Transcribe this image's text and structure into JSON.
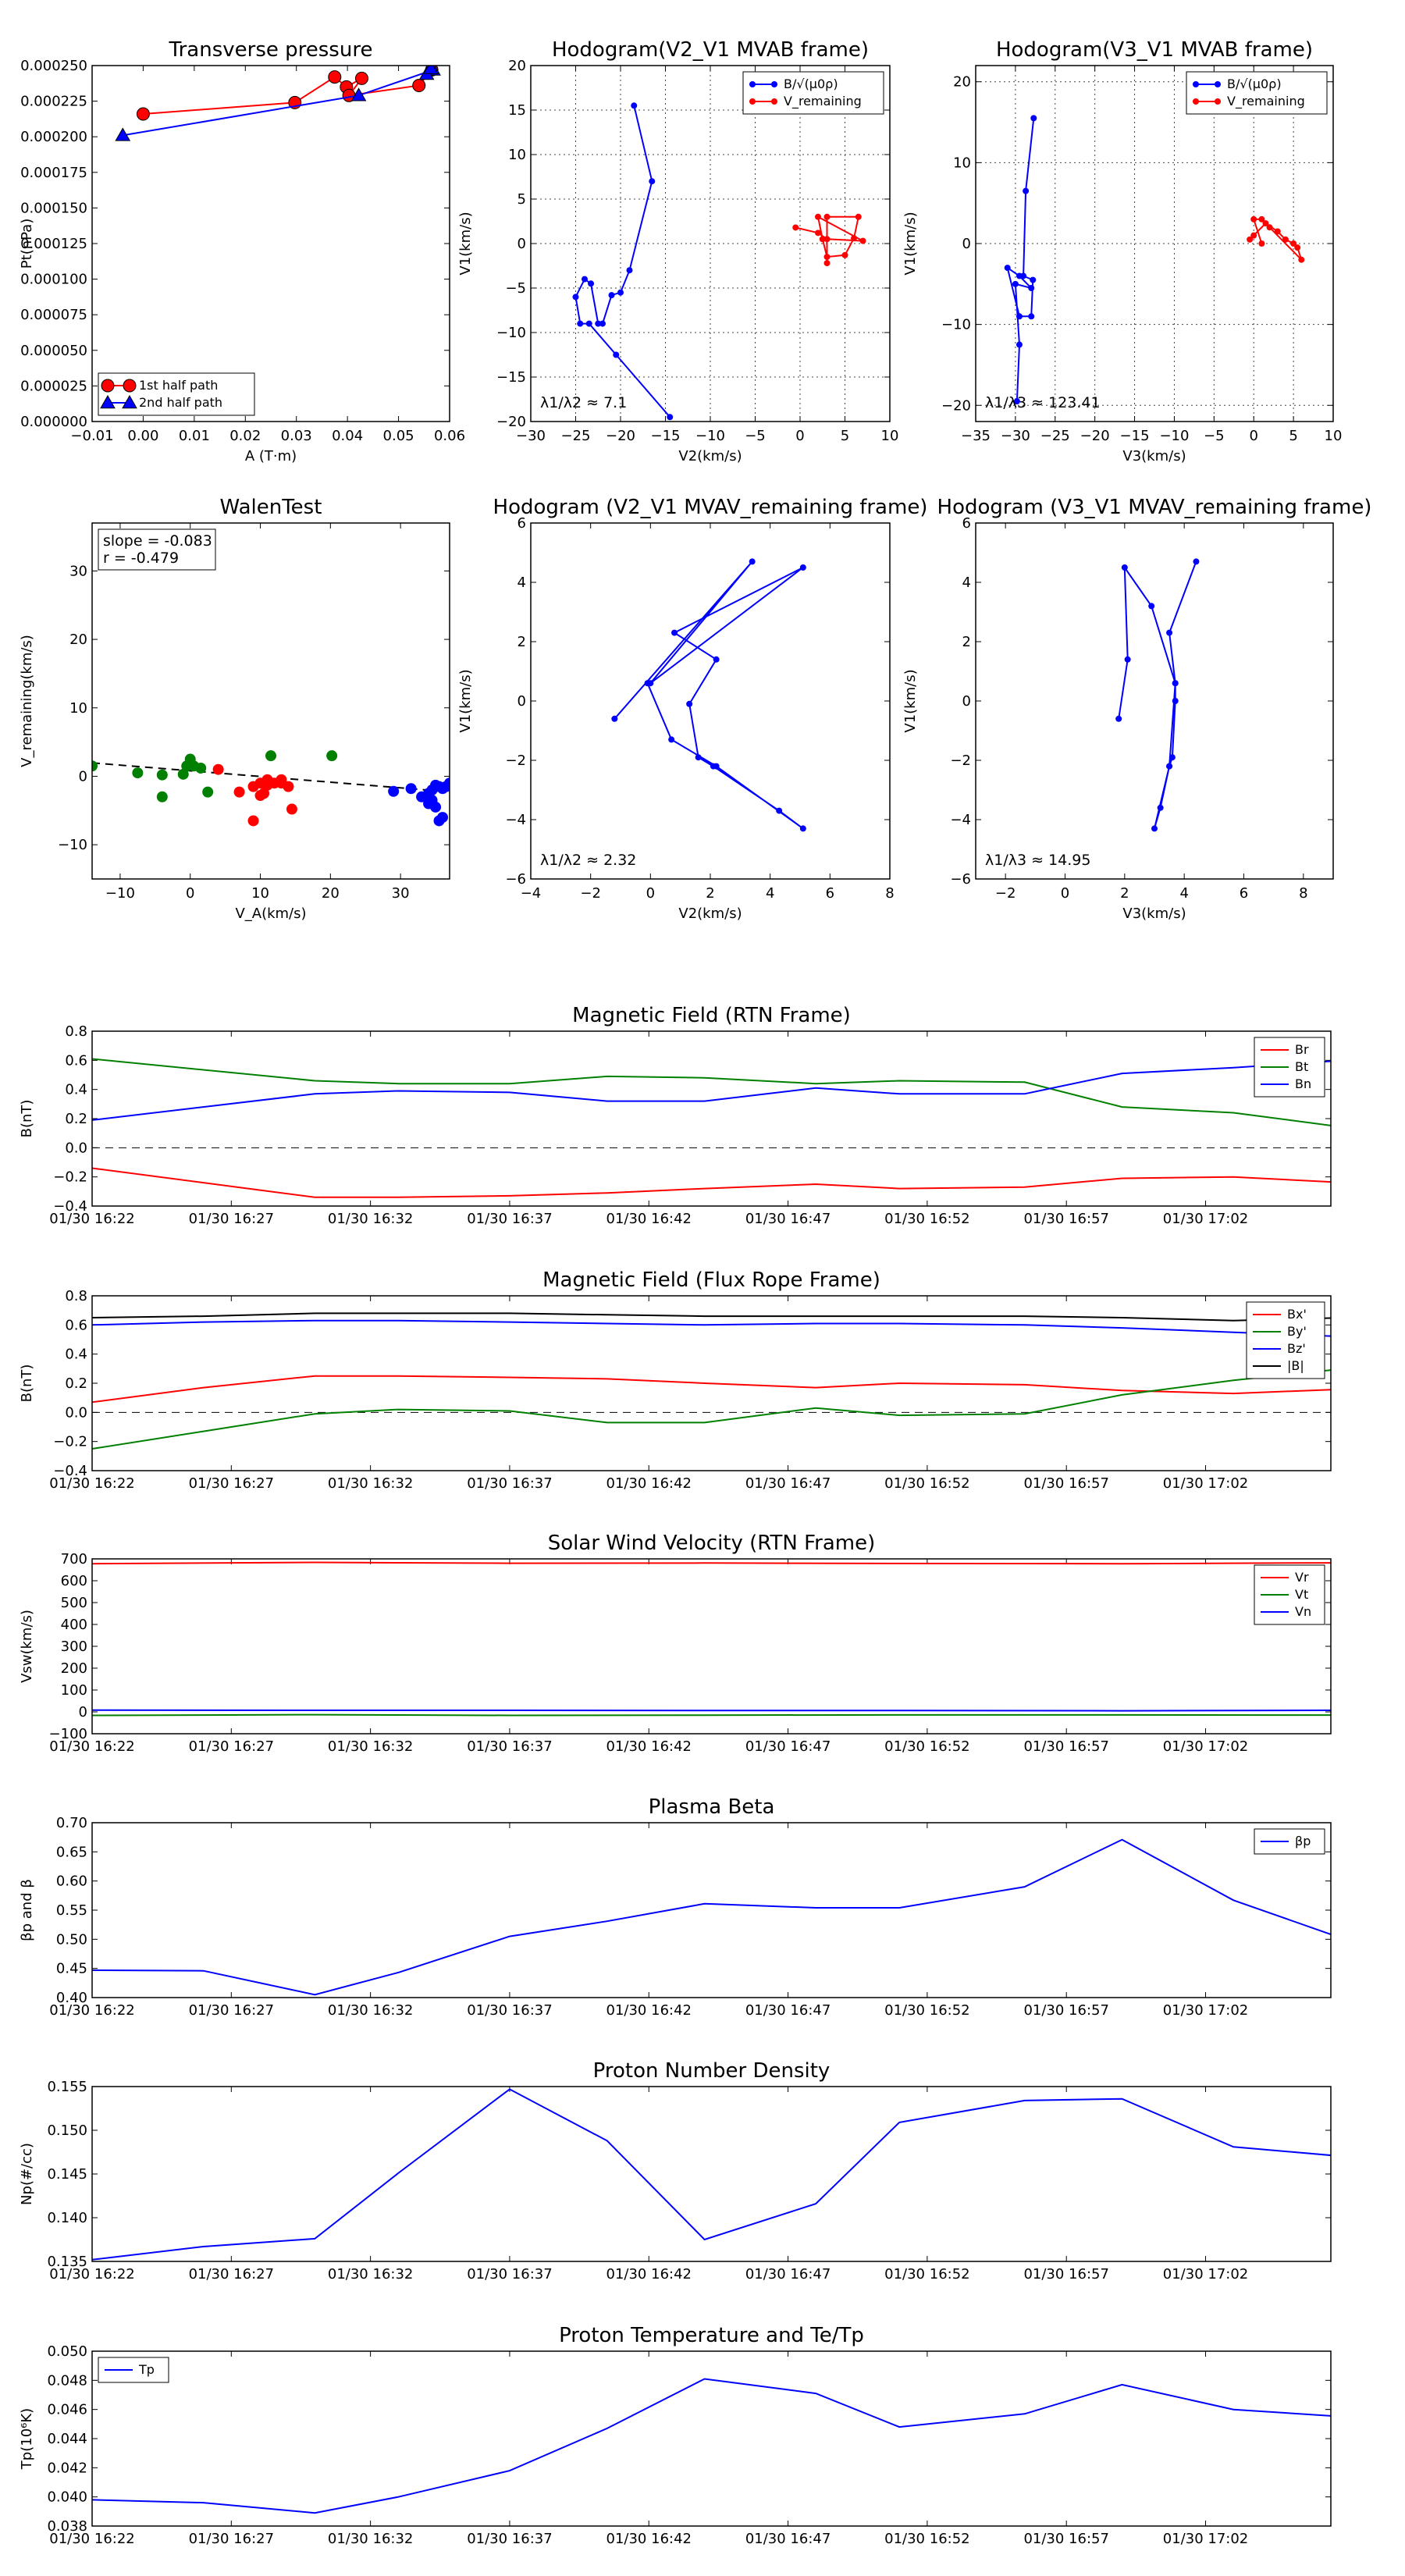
{
  "colors": {
    "red": "#ff0000",
    "green": "#008000",
    "blue": "#0000ff",
    "black": "#000000"
  },
  "time_ticks": [
    "01/30 16:22",
    "01/30 16:27",
    "01/30 16:32",
    "01/30 16:37",
    "01/30 16:42",
    "01/30 16:47",
    "01/30 16:52",
    "01/30 16:57",
    "01/30 17:02"
  ],
  "chart_data": [
    {
      "id": "tp",
      "type": "line",
      "title": "Transverse pressure",
      "xlabel": "A (T·m)",
      "ylabel": "Pt(nPa)",
      "xlim": [
        -0.01,
        0.06
      ],
      "ylim": [
        0,
        0.00025
      ],
      "xticks": [
        "−0.01",
        "0.00",
        "0.01",
        "0.02",
        "0.03",
        "0.04",
        "0.05",
        "0.06"
      ],
      "yticks": [
        "0.000000",
        "0.000025",
        "0.000050",
        "0.000075",
        "0.000100",
        "0.000125",
        "0.000150",
        "0.000175",
        "0.000200",
        "0.000225",
        "0.000250"
      ],
      "legend": "lower left",
      "series": [
        {
          "name": "1st half path",
          "color": "red",
          "marker": "circle",
          "x": [
            0.0,
            0.0297,
            0.0375,
            0.0398,
            0.0428,
            0.0403,
            0.054,
            0.0565
          ],
          "y": [
            0.000216,
            0.000224,
            0.000242,
            0.000235,
            0.000241,
            0.000229,
            0.000236,
            0.000247
          ]
        },
        {
          "name": "2nd half path",
          "color": "blue",
          "marker": "triangle",
          "x": [
            -0.004,
            0.0422,
            0.0568,
            0.0555,
            0.0563
          ],
          "y": [
            0.000201,
            0.000229,
            0.000247,
            0.000244,
            0.000248
          ]
        }
      ]
    },
    {
      "id": "h1",
      "type": "line",
      "title": "Hodogram(V2_V1 MVAB frame)",
      "xlabel": "V2(km/s)",
      "ylabel": "V1(km/s)",
      "xlim": [
        -30,
        10
      ],
      "ylim": [
        -20,
        20
      ],
      "xticks": [
        "−30",
        "−25",
        "−20",
        "−15",
        "−10",
        "−5",
        "0",
        "5",
        "10"
      ],
      "yticks": [
        "−20",
        "−15",
        "−10",
        "−5",
        "0",
        "5",
        "10",
        "15",
        "20"
      ],
      "grid": true,
      "legend": "upper right",
      "annotation": "λ1/λ2 ≈ 7.1",
      "series": [
        {
          "name": "B/√(μ0ρ)",
          "color": "blue",
          "x": [
            -18.5,
            -16.5,
            -19,
            -20,
            -21,
            -22,
            -22.5,
            -23.3,
            -24,
            -25,
            -24.5,
            -23.5,
            -20.5,
            -14.5
          ],
          "y": [
            15.5,
            7,
            -3,
            -5.5,
            -5.8,
            -9,
            -9,
            -4.5,
            -4,
            -6,
            -9,
            -9,
            -12.5,
            -19.5
          ]
        },
        {
          "name": "V_remaining",
          "color": "red",
          "x": [
            -0.5,
            2,
            3,
            7,
            2,
            2.5,
            3,
            5,
            6,
            6.5,
            3,
            3
          ],
          "y": [
            1.8,
            1.2,
            0.5,
            0.3,
            3,
            0.5,
            -1.5,
            -1.3,
            0.6,
            3,
            3,
            -2.2
          ]
        }
      ]
    },
    {
      "id": "h2",
      "type": "line",
      "title": "Hodogram(V3_V1 MVAB frame)",
      "xlabel": "V3(km/s)",
      "ylabel": "V1(km/s)",
      "xlim": [
        -35,
        10
      ],
      "ylim": [
        -22,
        22
      ],
      "xticks": [
        "−35",
        "−30",
        "−25",
        "−20",
        "−15",
        "−10",
        "−5",
        "0",
        "5",
        "10"
      ],
      "yticks": [
        "−20",
        "−10",
        "0",
        "10",
        "20"
      ],
      "grid": true,
      "legend": "upper right",
      "annotation": "λ1/λ3 ≈ 123.41",
      "series": [
        {
          "name": "B/√(μ0ρ)",
          "color": "blue",
          "x": [
            -27.7,
            -28.7,
            -29,
            -27.8,
            -28,
            -29.5,
            -31,
            -29.5,
            -28,
            -30,
            -29.5,
            -29.8
          ],
          "y": [
            15.5,
            6.5,
            -4,
            -4.5,
            -9,
            -9,
            -3,
            -4,
            -5.5,
            -5,
            -12.5,
            -19.5
          ]
        },
        {
          "name": "V_remaining",
          "color": "red",
          "x": [
            -0.5,
            0,
            1.5,
            3,
            4,
            5,
            5.5,
            6,
            2,
            1,
            0,
            1
          ],
          "y": [
            0.5,
            1,
            2.5,
            1.5,
            0.5,
            0,
            -0.5,
            -2,
            2,
            3,
            3,
            0
          ]
        }
      ]
    },
    {
      "id": "walen",
      "type": "scatter",
      "title": "WalenTest",
      "xlabel": "V_A(km/s)",
      "ylabel": "V_remaining(km/s)",
      "xlim": [
        -14,
        37
      ],
      "ylim": [
        -15,
        37
      ],
      "xticks": [
        "−10",
        "0",
        "10",
        "20",
        "30"
      ],
      "yticks": [
        "−10",
        "0",
        "10",
        "20",
        "30"
      ],
      "annotation": [
        "slope = -0.083",
        "r = -0.479"
      ],
      "fit": {
        "slope": -0.083,
        "intercept": 0.8
      },
      "series": [
        {
          "color": "green",
          "x": [
            -14,
            -7.5,
            -4,
            -1,
            -0.5,
            0,
            0.5,
            1.5,
            2.5,
            11.5,
            20.2,
            -4
          ],
          "y": [
            1.5,
            0.5,
            0.2,
            0.3,
            1.5,
            2.5,
            1.5,
            1.2,
            -2.3,
            3,
            3,
            -3
          ]
        },
        {
          "color": "red",
          "x": [
            4,
            7,
            9,
            10,
            10.5,
            11,
            11,
            12,
            13,
            13,
            14,
            14.5,
            9,
            10
          ],
          "y": [
            1,
            -2.3,
            -1.5,
            -1,
            -2.5,
            -1.3,
            -0.5,
            -1,
            -0.5,
            -1,
            -1.5,
            -4.8,
            -6.5,
            -2.8
          ]
        },
        {
          "color": "blue",
          "x": [
            29,
            31.5,
            33,
            34,
            34.5,
            35,
            35.5,
            36,
            36.5,
            37,
            35.5,
            36,
            35,
            34,
            34.5
          ],
          "y": [
            -2.2,
            -1.8,
            -3,
            -2.5,
            -3.5,
            -1.3,
            -1.5,
            -1.8,
            -1.5,
            -1,
            -6.5,
            -6,
            -4.5,
            -4,
            -2
          ]
        }
      ]
    },
    {
      "id": "h3",
      "type": "line",
      "title": "Hodogram (V2_V1 MVAV_remaining frame)",
      "xlabel": "V2(km/s)",
      "ylabel": "V1(km/s)",
      "xlim": [
        -4,
        8
      ],
      "ylim": [
        -6,
        6
      ],
      "xticks": [
        "−4",
        "−2",
        "0",
        "2",
        "4",
        "6",
        "8"
      ],
      "yticks": [
        "−6",
        "−4",
        "−2",
        "0",
        "2",
        "4",
        "6"
      ],
      "annotation": "λ1/λ2 ≈ 2.32",
      "series": [
        {
          "color": "blue",
          "x": [
            -1.2,
            3.4,
            0,
            5.1,
            0.8,
            2.2,
            1.3,
            1.6,
            2.1,
            4.3,
            5.1,
            2.2,
            0.7,
            -0.1
          ],
          "y": [
            -0.6,
            4.7,
            0.6,
            4.5,
            2.3,
            1.4,
            -0.1,
            -1.9,
            -2.2,
            -3.7,
            -4.3,
            -2.2,
            -1.3,
            0.6
          ]
        }
      ]
    },
    {
      "id": "h4",
      "type": "line",
      "title": "Hodogram (V3_V1 MVAV_remaining frame)",
      "xlabel": "V3(km/s)",
      "ylabel": "V1(km/s)",
      "xlim": [
        -3,
        9
      ],
      "ylim": [
        -6,
        6
      ],
      "xticks": [
        "−2",
        "0",
        "2",
        "4",
        "6",
        "8"
      ],
      "yticks": [
        "−6",
        "−4",
        "−2",
        "0",
        "2",
        "4",
        "6"
      ],
      "annotation": "λ1/λ3 ≈ 14.95",
      "series": [
        {
          "color": "blue",
          "x": [
            1.8,
            2.1,
            2.0,
            2.9,
            3.7,
            3.7,
            3.6,
            3.5,
            3.2,
            3.0,
            3.5,
            3.7,
            3.5,
            4.4
          ],
          "y": [
            -0.6,
            1.4,
            4.5,
            3.2,
            0.6,
            0,
            -1.9,
            -2.2,
            -3.6,
            -4.3,
            -2.2,
            0.6,
            2.3,
            4.7
          ]
        }
      ]
    },
    {
      "id": "mag_rtn",
      "type": "line",
      "title": "Magnetic Field (RTN Frame)",
      "ylabel": "B(nT)",
      "ylim": [
        -0.4,
        0.8
      ],
      "yticks": [
        "−0.4",
        "−0.2",
        "0.0",
        "0.2",
        "0.4",
        "0.6",
        "0.8"
      ],
      "x_minutes": [
        0,
        8,
        11,
        15,
        18.5,
        22,
        26,
        29,
        33.5,
        37,
        41,
        45
      ],
      "zero_line": true,
      "legend": "upper right",
      "series": [
        {
          "name": "Br",
          "color": "red",
          "values": [
            -0.14,
            -0.34,
            -0.34,
            -0.33,
            -0.31,
            -0.28,
            -0.25,
            -0.28,
            -0.27,
            -0.21,
            -0.2,
            -0.24
          ]
        },
        {
          "name": "Bt",
          "color": "green",
          "values": [
            0.61,
            0.46,
            0.44,
            0.44,
            0.49,
            0.48,
            0.44,
            0.46,
            0.45,
            0.28,
            0.24,
            0.14
          ]
        },
        {
          "name": "Bn",
          "color": "blue",
          "values": [
            0.19,
            0.37,
            0.39,
            0.38,
            0.32,
            0.32,
            0.41,
            0.37,
            0.37,
            0.51,
            0.55,
            0.6
          ]
        }
      ]
    },
    {
      "id": "mag_fr",
      "type": "line",
      "title": "Magnetic Field (Flux Rope Frame)",
      "ylabel": "B(nT)",
      "ylim": [
        -0.4,
        0.8
      ],
      "yticks": [
        "−0.4",
        "−0.2",
        "0.0",
        "0.2",
        "0.4",
        "0.6",
        "0.8"
      ],
      "x_minutes": [
        0,
        4,
        8,
        11,
        15,
        18.5,
        22,
        26,
        29,
        33.5,
        37,
        41,
        45
      ],
      "zero_line": true,
      "legend": "upper right",
      "series": [
        {
          "name": "Bx'",
          "color": "red",
          "values": [
            0.07,
            0.17,
            0.25,
            0.25,
            0.24,
            0.23,
            0.2,
            0.17,
            0.2,
            0.19,
            0.15,
            0.13,
            0.16
          ]
        },
        {
          "name": "By'",
          "color": "green",
          "values": [
            -0.25,
            -0.13,
            -0.01,
            0.02,
            0.01,
            -0.07,
            -0.07,
            0.03,
            -0.02,
            -0.01,
            0.12,
            0.22,
            0.3
          ]
        },
        {
          "name": "Bz'",
          "color": "blue",
          "values": [
            0.6,
            0.62,
            0.63,
            0.63,
            0.62,
            0.61,
            0.6,
            0.61,
            0.61,
            0.6,
            0.58,
            0.55,
            0.52
          ]
        },
        {
          "name": "|B|",
          "color": "black",
          "values": [
            0.65,
            0.66,
            0.68,
            0.68,
            0.68,
            0.67,
            0.66,
            0.66,
            0.66,
            0.66,
            0.65,
            0.63,
            0.65
          ]
        }
      ]
    },
    {
      "id": "vsw",
      "type": "line",
      "title": "Solar Wind Velocity (RTN Frame)",
      "ylabel": "Vsw(km/s)",
      "ylim": [
        -100,
        700
      ],
      "yticks": [
        "−100",
        "0",
        "100",
        "200",
        "300",
        "400",
        "500",
        "600",
        "700"
      ],
      "x_minutes": [
        0,
        8,
        15,
        22,
        29,
        37,
        45
      ],
      "legend": "upper right",
      "series": [
        {
          "name": "Vr",
          "color": "red",
          "values": [
            678,
            684,
            680,
            681,
            679,
            678,
            682
          ]
        },
        {
          "name": "Vt",
          "color": "green",
          "values": [
            -16,
            -13,
            -16,
            -15,
            -14,
            -14,
            -15
          ]
        },
        {
          "name": "Vn",
          "color": "blue",
          "values": [
            8,
            7,
            7,
            6,
            6,
            5,
            7
          ]
        }
      ]
    },
    {
      "id": "beta",
      "type": "line",
      "title": "Plasma Beta",
      "ylabel": "βp and β",
      "ylim": [
        0.4,
        0.7
      ],
      "yticks": [
        "0.40",
        "0.45",
        "0.50",
        "0.55",
        "0.60",
        "0.65",
        "0.70"
      ],
      "x_minutes": [
        0,
        4,
        8,
        11,
        15,
        18.5,
        22,
        26,
        29,
        33.5,
        37,
        41,
        45
      ],
      "legend": "upper right",
      "series": [
        {
          "name": "βp",
          "color": "blue",
          "values": [
            0.447,
            0.446,
            0.405,
            0.443,
            0.505,
            0.531,
            0.561,
            0.554,
            0.554,
            0.59,
            0.671,
            0.567,
            0.5
          ]
        }
      ]
    },
    {
      "id": "np",
      "type": "line",
      "title": "Proton Number Density",
      "ylabel": "Np(#/cc)",
      "ylim": [
        0.135,
        0.155
      ],
      "yticks": [
        "0.135",
        "0.140",
        "0.145",
        "0.150",
        "0.155"
      ],
      "x_minutes": [
        0,
        4,
        8,
        11,
        15,
        18.5,
        22,
        26,
        29,
        33.5,
        37,
        41,
        45
      ],
      "series": [
        {
          "name": "Np",
          "color": "blue",
          "values": [
            0.1352,
            0.1367,
            0.1376,
            0.1451,
            0.1547,
            0.1488,
            0.1375,
            0.1416,
            0.1509,
            0.1534,
            0.1536,
            0.1481,
            0.147
          ]
        }
      ]
    },
    {
      "id": "tp_temp",
      "type": "line",
      "title": "Proton Temperature and Te/Tp",
      "ylabel": "Tp(10⁶K)",
      "ylim": [
        0.038,
        0.05
      ],
      "yticks": [
        "0.038",
        "0.040",
        "0.042",
        "0.044",
        "0.046",
        "0.048",
        "0.050"
      ],
      "x_minutes": [
        0,
        4,
        8,
        11,
        15,
        18.5,
        22,
        26,
        29,
        33.5,
        37,
        41,
        45
      ],
      "legend": "upper left",
      "series": [
        {
          "name": "Tp",
          "color": "blue",
          "values": [
            0.0398,
            0.0396,
            0.0389,
            0.04,
            0.0418,
            0.0447,
            0.0481,
            0.0471,
            0.0448,
            0.0457,
            0.0477,
            0.046,
            0.0455
          ]
        }
      ]
    }
  ]
}
